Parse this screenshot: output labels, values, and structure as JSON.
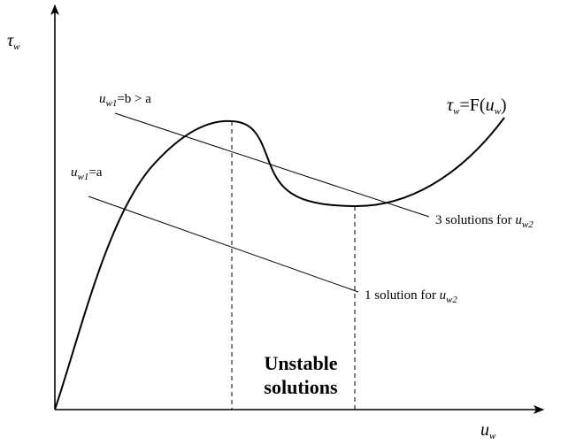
{
  "y_axis_label": [
    {
      "text": "τ"
    },
    {
      "sub": "w"
    }
  ],
  "x_axis_label": [
    {
      "text": "u"
    },
    {
      "sub": "w"
    }
  ],
  "curve_label": [
    {
      "text": "τ"
    },
    {
      "sub": "w"
    },
    {
      "text": "=F("
    },
    {
      "text": "u"
    },
    {
      "sub": "w"
    },
    {
      "text": ")"
    }
  ],
  "line_b_label": [
    {
      "text": "u"
    },
    {
      "sub": "w1"
    },
    {
      "text": "=b > a"
    }
  ],
  "line_a_label": [
    {
      "text": "u"
    },
    {
      "sub": "w1"
    },
    {
      "text": "=a"
    }
  ],
  "line_b_result": [
    {
      "text": "3 solutions for "
    },
    {
      "text": "u"
    },
    {
      "sub": "w2"
    }
  ],
  "line_a_result": [
    {
      "text": "1 solution for "
    },
    {
      "text": "u"
    },
    {
      "sub": "w2"
    }
  ],
  "region_label": [
    "Unstable",
    "solutions"
  ]
}
